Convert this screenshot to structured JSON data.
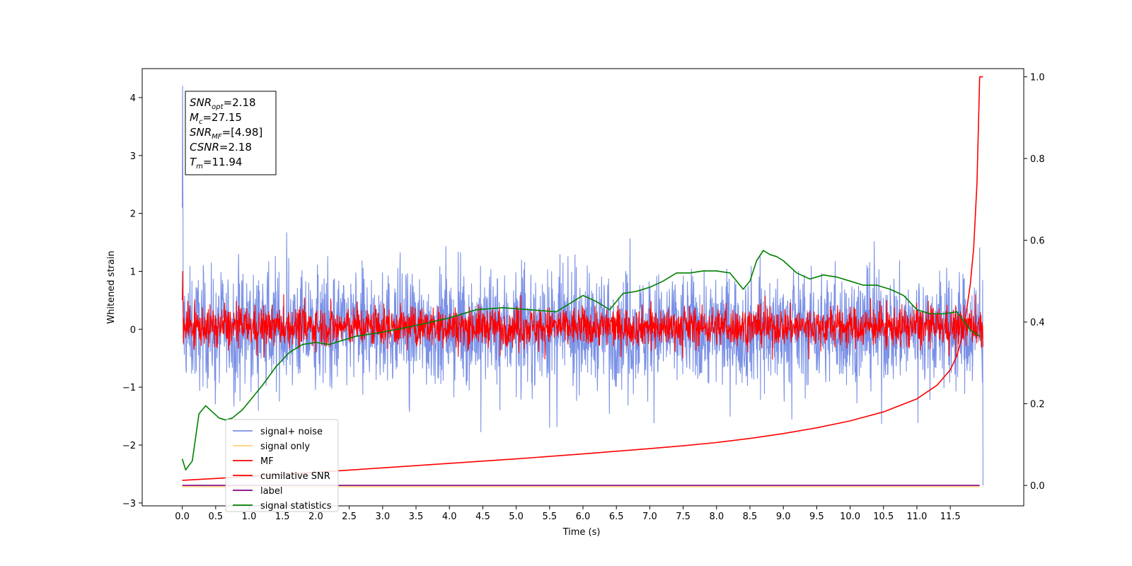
{
  "chart_data": {
    "type": "line",
    "xlabel": "Time (s)",
    "ylabel": "Whitened strain",
    "xlim": [
      -0.6,
      12.6
    ],
    "ylim_left": [
      -3.05,
      4.5
    ],
    "ylim_right": [
      -0.05,
      1.02
    ],
    "grid": false,
    "legend_placement": "lower-left",
    "x_ticks": [
      "0.0",
      "0.5",
      "1.0",
      "1.5",
      "2.0",
      "2.5",
      "3.0",
      "3.5",
      "4.0",
      "4.5",
      "5.0",
      "5.5",
      "6.0",
      "6.5",
      "7.0",
      "7.5",
      "8.0",
      "8.5",
      "9.0",
      "9.5",
      "10.0",
      "10.5",
      "11.0",
      "11.5"
    ],
    "y_ticks_left": [
      "4",
      "3",
      "2",
      "1",
      "0",
      "−1",
      "−2",
      "−3"
    ],
    "y_ticks_right": [
      "1.0",
      "0.8",
      "0.6",
      "0.4",
      "0.2",
      "0.0"
    ],
    "annotation_lines": [
      {
        "base": "SNR",
        "sub": "opt",
        "rest": "=2.18"
      },
      {
        "base": "M",
        "sub": "c",
        "rest": "=27.15"
      },
      {
        "base": "SNR",
        "sub": "MF",
        "rest": "=[4.98]"
      },
      {
        "base": "CSNR",
        "sub": "",
        "rest": "=2.18"
      },
      {
        "base": "T",
        "sub": "m",
        "rest": "=11.94"
      }
    ],
    "series": [
      {
        "name": "signal+ noise",
        "color": "#7990e6",
        "axis": "left",
        "style": "noise",
        "x_range": [
          0.0,
          11.99
        ],
        "center": 0.0,
        "band": [
          -1.3,
          1.3
        ],
        "peaks": [
          4.2,
          -2.7
        ]
      },
      {
        "name": "signal only",
        "color": "#ffd27a",
        "axis": "left",
        "style": "flat",
        "x_range": [
          0.0,
          11.94
        ],
        "values": [
          -2.72,
          -2.72
        ]
      },
      {
        "name": "MF",
        "color": "#ff0000",
        "axis": "left",
        "style": "noise",
        "x_range": [
          0.0,
          11.99
        ],
        "center": 0.0,
        "band": [
          -0.3,
          0.6
        ],
        "peaks": [
          1.0,
          -0.3
        ]
      },
      {
        "name": "cumilative SNR",
        "color": "#ff0000",
        "axis": "right",
        "x": [
          0.0,
          0.5,
          1.0,
          2.0,
          3.0,
          4.0,
          5.0,
          6.0,
          7.0,
          7.5,
          8.0,
          8.5,
          9.0,
          9.5,
          10.0,
          10.5,
          11.0,
          11.3,
          11.5,
          11.6,
          11.7,
          11.8,
          11.85,
          11.9,
          11.94,
          11.99
        ],
        "y": [
          0.0125,
          0.017,
          0.022,
          0.032,
          0.043,
          0.054,
          0.065,
          0.077,
          0.09,
          0.097,
          0.105,
          0.115,
          0.127,
          0.141,
          0.158,
          0.18,
          0.212,
          0.245,
          0.283,
          0.318,
          0.378,
          0.493,
          0.58,
          0.74,
          1.0,
          1.0
        ]
      },
      {
        "name": "label",
        "color": "#800080",
        "axis": "right",
        "x": [
          0.0,
          11.94
        ],
        "y": [
          0.0,
          0.0
        ]
      },
      {
        "name": "signal statistics",
        "color": "#008000",
        "axis": "right",
        "x": [
          0.0,
          0.05,
          0.15,
          0.25,
          0.35,
          0.45,
          0.55,
          0.65,
          0.75,
          0.9,
          1.0,
          1.2,
          1.4,
          1.6,
          1.8,
          2.0,
          2.2,
          2.4,
          2.6,
          2.8,
          3.0,
          3.3,
          3.6,
          4.0,
          4.4,
          4.8,
          5.2,
          5.6,
          6.0,
          6.2,
          6.4,
          6.6,
          6.8,
          7.0,
          7.2,
          7.4,
          7.6,
          7.8,
          8.0,
          8.2,
          8.4,
          8.5,
          8.6,
          8.7,
          8.8,
          8.9,
          9.0,
          9.2,
          9.4,
          9.6,
          9.8,
          10.0,
          10.2,
          10.4,
          10.6,
          10.8,
          11.0,
          11.2,
          11.4,
          11.6,
          11.8,
          11.94
        ],
        "y": [
          0.065,
          0.038,
          0.06,
          0.175,
          0.195,
          0.18,
          0.165,
          0.16,
          0.165,
          0.185,
          0.205,
          0.245,
          0.29,
          0.325,
          0.345,
          0.35,
          0.345,
          0.355,
          0.365,
          0.37,
          0.375,
          0.385,
          0.395,
          0.41,
          0.43,
          0.435,
          0.43,
          0.425,
          0.465,
          0.45,
          0.43,
          0.47,
          0.475,
          0.485,
          0.5,
          0.52,
          0.52,
          0.525,
          0.525,
          0.52,
          0.48,
          0.5,
          0.55,
          0.575,
          0.565,
          0.56,
          0.55,
          0.52,
          0.505,
          0.515,
          0.51,
          0.5,
          0.49,
          0.49,
          0.48,
          0.465,
          0.43,
          0.42,
          0.42,
          0.425,
          0.38,
          0.365
        ]
      }
    ]
  }
}
